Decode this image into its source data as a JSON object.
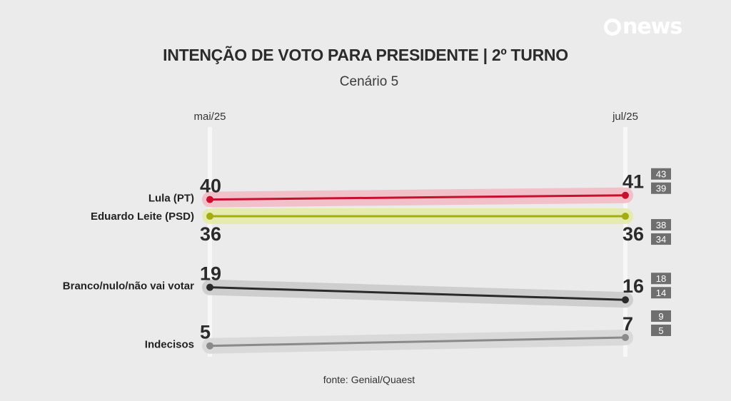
{
  "brand": {
    "logo_text": "news"
  },
  "header": {
    "title": "INTENÇÃO DE VOTO PARA PRESIDENTE | 2º TURNO",
    "subtitle": "Cenário 5"
  },
  "footer": {
    "source": "fonte: Genial/Quaest"
  },
  "chart_data": {
    "type": "line",
    "categories": [
      "mai/25",
      "jul/25"
    ],
    "ylim": [
      0,
      45
    ],
    "grid": false,
    "series": [
      {
        "name": "Lula (PT)",
        "values": [
          40,
          41
        ],
        "margin_labels": [
          "43",
          "39"
        ],
        "color": "#c8102e",
        "band_color": "#f3b9c2"
      },
      {
        "name": "Eduardo Leite (PSD)",
        "values": [
          36,
          36
        ],
        "margin_labels": [
          "38",
          "34"
        ],
        "color": "#a3ad0f",
        "band_color": "#e5eba4"
      },
      {
        "name": "Branco/nulo/não vai votar",
        "values": [
          19,
          16
        ],
        "margin_labels": [
          "18",
          "14"
        ],
        "color": "#2a2a2a",
        "band_color": "#c9c9c9"
      },
      {
        "name": "Indecisos",
        "values": [
          5,
          7
        ],
        "margin_labels": [
          "9",
          "5"
        ],
        "color": "#8a8a8a",
        "band_color": "#d6d6d6"
      }
    ]
  }
}
